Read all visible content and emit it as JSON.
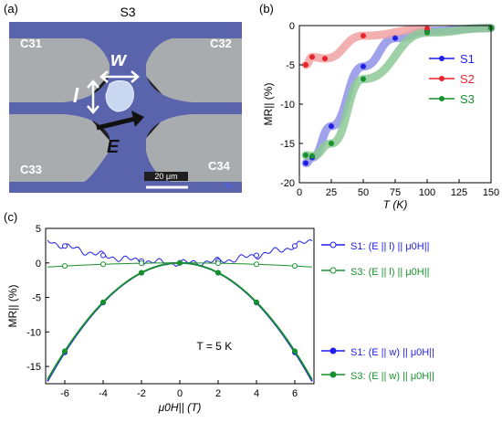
{
  "panel_a": {
    "label": "(a)",
    "title": "S3",
    "contacts": [
      "C31",
      "C32",
      "C33",
      "C34"
    ],
    "width_symbol": "w",
    "length_symbol": "l",
    "field_symbol": "E",
    "scale_bar": "20 μm",
    "colors": {
      "substrate": "#5a64ad",
      "pads": "#a9acaf",
      "flake": "#c9d7f1",
      "background": "#1e1e1e"
    }
  },
  "chart_data": [
    {
      "panel": "(b)",
      "type": "scatter",
      "title": "",
      "xlabel": "T (K)",
      "ylabel": "MR|| (%)",
      "xlim": [
        0,
        150
      ],
      "ylim": [
        -20,
        0
      ],
      "xticks": [
        0,
        25,
        50,
        75,
        100,
        125,
        150
      ],
      "yticks": [
        -20,
        -15,
        -10,
        -5,
        0
      ],
      "legend_position": "right",
      "series": [
        {
          "name": "S1",
          "color": "#1f1fe8",
          "band": "#8f92e8",
          "x": [
            5,
            10,
            25,
            50,
            75,
            100,
            150
          ],
          "y": [
            -17.5,
            -16.8,
            -12.8,
            -5.2,
            -1.6,
            -0.7,
            -0.3
          ]
        },
        {
          "name": "S2",
          "color": "#e8232a",
          "band": "#f1a2a2",
          "x": [
            5,
            10,
            20,
            50,
            100
          ],
          "y": [
            -5,
            -4,
            -4.2,
            -1.3,
            -0.4
          ]
        },
        {
          "name": "S3",
          "color": "#17912b",
          "band": "#8dc995",
          "x": [
            5,
            10,
            25,
            50,
            100,
            150
          ],
          "y": [
            -16.5,
            -16.6,
            -15,
            -6.8,
            -0.9,
            -0.3
          ]
        }
      ]
    },
    {
      "panel": "(c)",
      "type": "line",
      "title": "",
      "xlabel": "μ0H|| (T)",
      "ylabel": "MR|| (%)",
      "xlim": [
        -7,
        7
      ],
      "ylim": [
        -17.5,
        5
      ],
      "xticks": [
        -6,
        -4,
        -2,
        0,
        2,
        4,
        6
      ],
      "yticks": [
        -15,
        -10,
        -5,
        0,
        5
      ],
      "annotation": "T = 5 K",
      "legend_position": "right",
      "series": [
        {
          "name": "S1: (E || l) || μ0H||",
          "color": "#1f1fe8",
          "marker": "open",
          "curvature": 0.068
        },
        {
          "name": "S3: (E || l) || μ0H||",
          "color": "#17912b",
          "marker": "open",
          "curvature": -0.0125
        },
        {
          "name": "S1: (E || w) || μ0H||",
          "color": "#1f1fe8",
          "marker": "filled",
          "curvature": -0.36
        },
        {
          "name": "S3: (E || w) || μ0H||",
          "color": "#17912b",
          "marker": "filled",
          "curvature": -0.355
        }
      ]
    }
  ]
}
